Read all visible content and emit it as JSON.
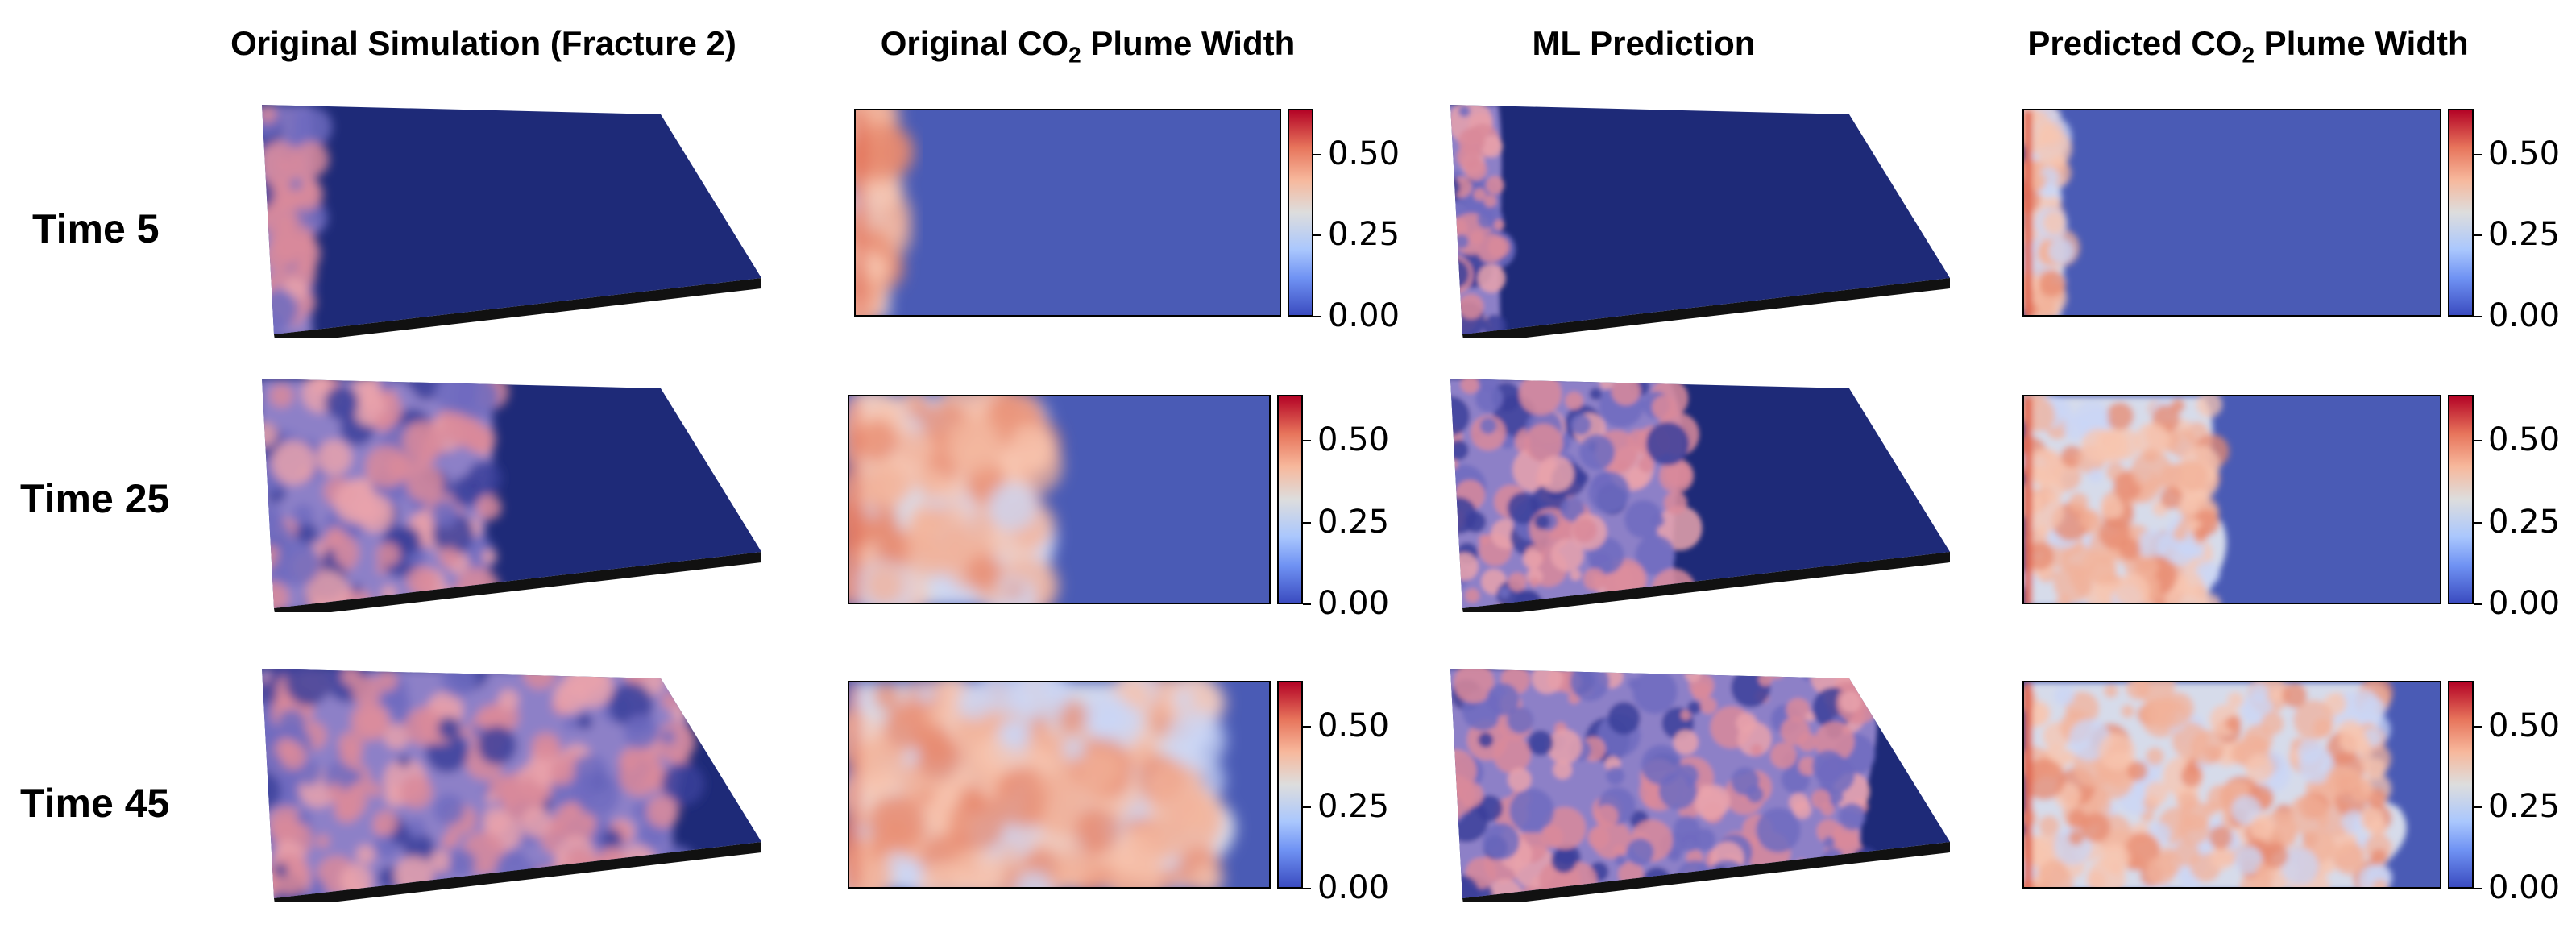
{
  "columns": {
    "original_simulation": "Original Simulation (Fracture 2)",
    "original_plume_width": {
      "prefix": "Original CO",
      "sub": "2",
      "suffix": " Plume Width"
    },
    "ml_prediction": "ML Prediction",
    "predicted_plume_width": {
      "prefix": "Predicted CO",
      "sub": "2",
      "suffix": " Plume Width"
    }
  },
  "rows": [
    {
      "label": "Time 5",
      "plume_extent_original": 0.08,
      "plume_extent_predicted": 0.09
    },
    {
      "label": "Time 25",
      "plume_extent_original": 0.45,
      "plume_extent_predicted": 0.45
    },
    {
      "label": "Time 45",
      "plume_extent_original": 0.85,
      "plume_extent_predicted": 0.85
    }
  ],
  "colorbar": {
    "ticks": [
      "0.50",
      "0.25",
      "0.00"
    ],
    "colors": {
      "low": "#3b4cc0",
      "mid": "#dddddd",
      "high": "#b40426",
      "surface_dark": "#1e2a78"
    }
  }
}
